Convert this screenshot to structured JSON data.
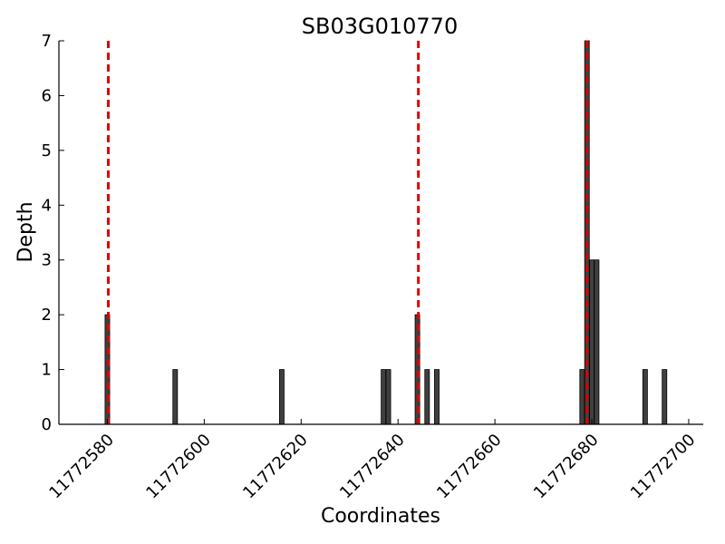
{
  "chart_data": {
    "type": "bar",
    "title": "SB03G010770",
    "xlabel": "Coordinates",
    "ylabel": "Depth",
    "xlim": [
      11772570,
      11772703
    ],
    "ylim": [
      0,
      7
    ],
    "x_ticks": [
      11772580,
      11772600,
      11772620,
      11772640,
      11772660,
      11772680,
      11772700
    ],
    "x_tick_labels": [
      "11772580",
      "11772600",
      "11772620",
      "11772640",
      "11772660",
      "11772680",
      "11772700"
    ],
    "y_ticks": [
      0,
      1,
      2,
      3,
      4,
      5,
      6,
      7
    ],
    "y_tick_labels": [
      "0",
      "1",
      "2",
      "3",
      "4",
      "5",
      "6",
      "7"
    ],
    "bar_color": "#404040",
    "bar_edge_color": "#000000",
    "x": [
      11772580,
      11772594,
      11772616,
      11772637,
      11772638,
      11772644,
      11772646,
      11772648,
      11772678,
      11772679,
      11772680,
      11772681,
      11772691,
      11772695
    ],
    "values": [
      2,
      1,
      1,
      1,
      1,
      2,
      1,
      1,
      1,
      7,
      3,
      3,
      1,
      1
    ],
    "reference_lines": {
      "color": "#dd0000",
      "style": "dashed",
      "x": [
        11772580.2,
        11772644.2,
        11772679
      ]
    },
    "grid": false
  }
}
